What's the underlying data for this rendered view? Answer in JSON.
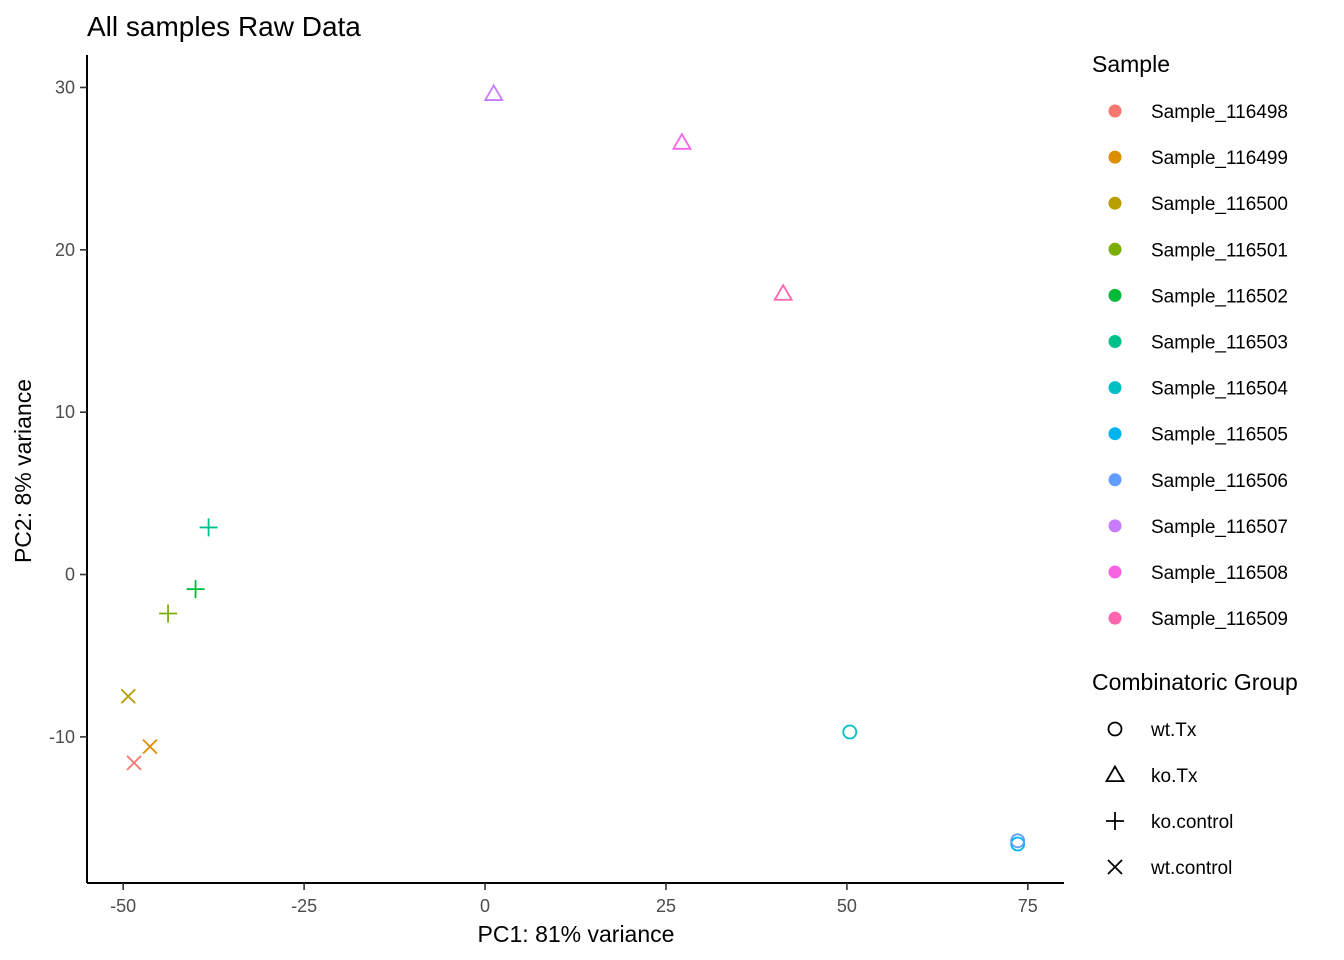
{
  "chart_data": {
    "type": "scatter",
    "title": "All samples Raw Data",
    "xlabel": "PC1: 81% variance",
    "ylabel": "PC2: 8% variance",
    "xlim": [
      -55,
      80
    ],
    "ylim": [
      -19,
      32
    ],
    "xticks": [
      -50,
      -25,
      0,
      25,
      50,
      75
    ],
    "yticks": [
      -10,
      0,
      10,
      20,
      30
    ],
    "grid": false,
    "legend_placement": "right",
    "sample_legend_title": "Sample",
    "group_legend_title": "Combinatoric Group",
    "samples": [
      {
        "name": "Sample_116498",
        "color": "#F8766D"
      },
      {
        "name": "Sample_116499",
        "color": "#DE8C00"
      },
      {
        "name": "Sample_116500",
        "color": "#B79F00"
      },
      {
        "name": "Sample_116501",
        "color": "#7CAE00"
      },
      {
        "name": "Sample_116502",
        "color": "#00BA38"
      },
      {
        "name": "Sample_116503",
        "color": "#00C08B"
      },
      {
        "name": "Sample_116504",
        "color": "#00BFC4"
      },
      {
        "name": "Sample_116505",
        "color": "#00B4F0"
      },
      {
        "name": "Sample_116506",
        "color": "#619CFF"
      },
      {
        "name": "Sample_116507",
        "color": "#C77CFF"
      },
      {
        "name": "Sample_116508",
        "color": "#F564E3"
      },
      {
        "name": "Sample_116509",
        "color": "#FF64B0"
      }
    ],
    "groups": [
      {
        "name": "wt.Tx",
        "shape": "circle"
      },
      {
        "name": "ko.Tx",
        "shape": "triangle"
      },
      {
        "name": "ko.control",
        "shape": "plus"
      },
      {
        "name": "wt.control",
        "shape": "cross"
      }
    ],
    "points": [
      {
        "sample": "Sample_116498",
        "group": "wt.control",
        "x": -48.5,
        "y": -11.6
      },
      {
        "sample": "Sample_116499",
        "group": "wt.control",
        "x": -46.3,
        "y": -10.6
      },
      {
        "sample": "Sample_116500",
        "group": "wt.control",
        "x": -49.3,
        "y": -7.5
      },
      {
        "sample": "Sample_116501",
        "group": "ko.control",
        "x": -43.8,
        "y": -2.4
      },
      {
        "sample": "Sample_116502",
        "group": "ko.control",
        "x": -40.0,
        "y": -0.9
      },
      {
        "sample": "Sample_116503",
        "group": "ko.control",
        "x": -38.2,
        "y": 2.9
      },
      {
        "sample": "Sample_116504",
        "group": "wt.Tx",
        "x": 50.4,
        "y": -9.7
      },
      {
        "sample": "Sample_116505",
        "group": "wt.Tx",
        "x": 73.6,
        "y": -16.6
      },
      {
        "sample": "Sample_116506",
        "group": "wt.Tx",
        "x": 73.6,
        "y": -16.4
      },
      {
        "sample": "Sample_116507",
        "group": "ko.Tx",
        "x": 1.2,
        "y": 29.6
      },
      {
        "sample": "Sample_116508",
        "group": "ko.Tx",
        "x": 27.2,
        "y": 26.6
      },
      {
        "sample": "Sample_116509",
        "group": "ko.Tx",
        "x": 41.2,
        "y": 17.3
      }
    ]
  }
}
